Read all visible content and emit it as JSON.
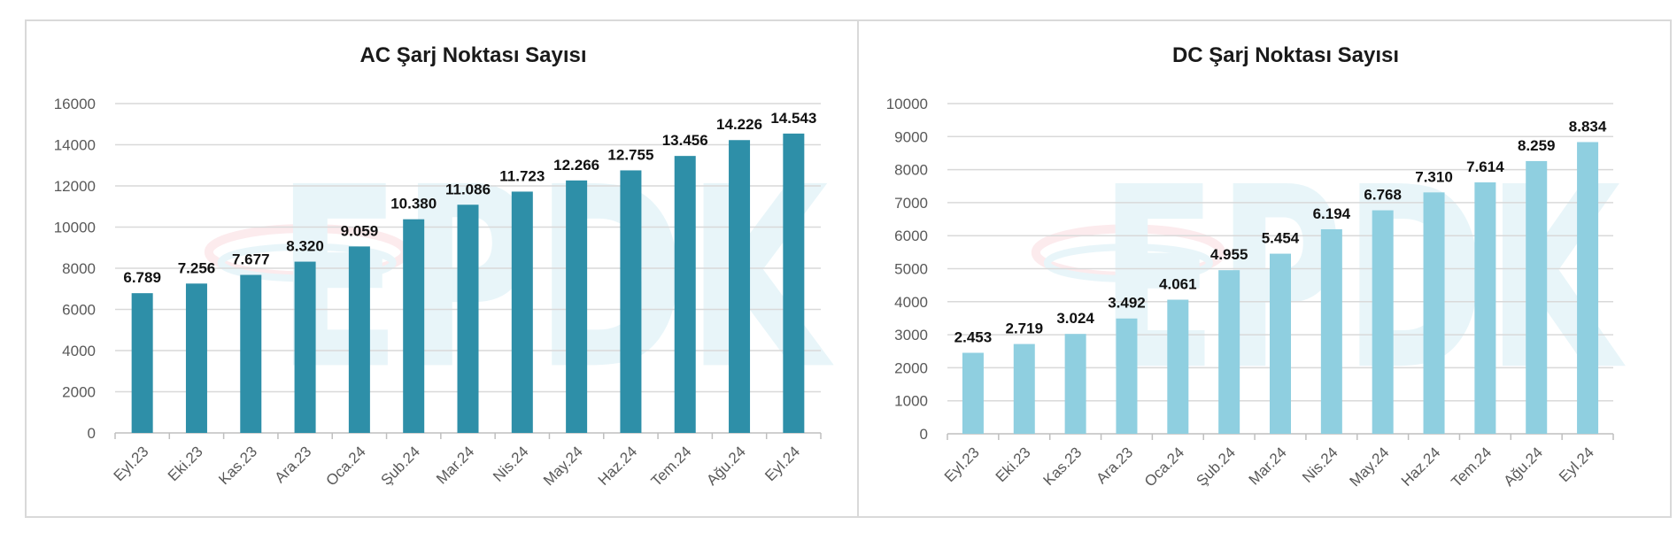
{
  "chart_data": [
    {
      "type": "bar",
      "title": "AC Şarj Noktası Sayısı",
      "categories": [
        "Eyl.23",
        "Eki.23",
        "Kas.23",
        "Ara.23",
        "Oca.24",
        "Şub.24",
        "Mar.24",
        "Nis.24",
        "May.24",
        "Haz.24",
        "Tem.24",
        "Ağu.24",
        "Eyl.24"
      ],
      "values": [
        6789,
        7256,
        7677,
        8320,
        9059,
        10380,
        11086,
        11723,
        12266,
        12755,
        13456,
        14226,
        14543
      ],
      "data_labels": [
        "6.789",
        "7.256",
        "7.677",
        "8.320",
        "9.059",
        "10.380",
        "11.086",
        "11.723",
        "12.266",
        "12.755",
        "13.456",
        "14.226",
        "14.543"
      ],
      "yticks": [
        0,
        2000,
        4000,
        6000,
        8000,
        10000,
        12000,
        14000,
        16000
      ],
      "ylim": [
        0,
        16000
      ],
      "xlabel": "",
      "ylabel": "",
      "grid": true,
      "legend": "none",
      "bar_color": "#2e8fa8"
    },
    {
      "type": "bar",
      "title": "DC Şarj Noktası Sayısı",
      "categories": [
        "Eyl.23",
        "Eki.23",
        "Kas.23",
        "Ara.23",
        "Oca.24",
        "Şub.24",
        "Mar.24",
        "Nis.24",
        "May.24",
        "Haz.24",
        "Tem.24",
        "Ağu.24",
        "Eyl.24"
      ],
      "values": [
        2453,
        2719,
        3024,
        3492,
        4061,
        4955,
        5454,
        6194,
        6768,
        7310,
        7614,
        8259,
        8834
      ],
      "data_labels": [
        "2.453",
        "2.719",
        "3.024",
        "3.492",
        "4.061",
        "4.955",
        "5.454",
        "6.194",
        "6.768",
        "7.310",
        "7.614",
        "8.259",
        "8.834"
      ],
      "yticks": [
        0,
        1000,
        2000,
        3000,
        4000,
        5000,
        6000,
        7000,
        8000,
        9000,
        10000
      ],
      "ylim": [
        0,
        10000
      ],
      "xlabel": "",
      "ylabel": "",
      "grid": true,
      "legend": "none",
      "bar_color": "#8fcfe0"
    }
  ],
  "watermark": {
    "text": "EPDK",
    "colors": [
      "#d6eef5",
      "#fadbe0"
    ]
  }
}
